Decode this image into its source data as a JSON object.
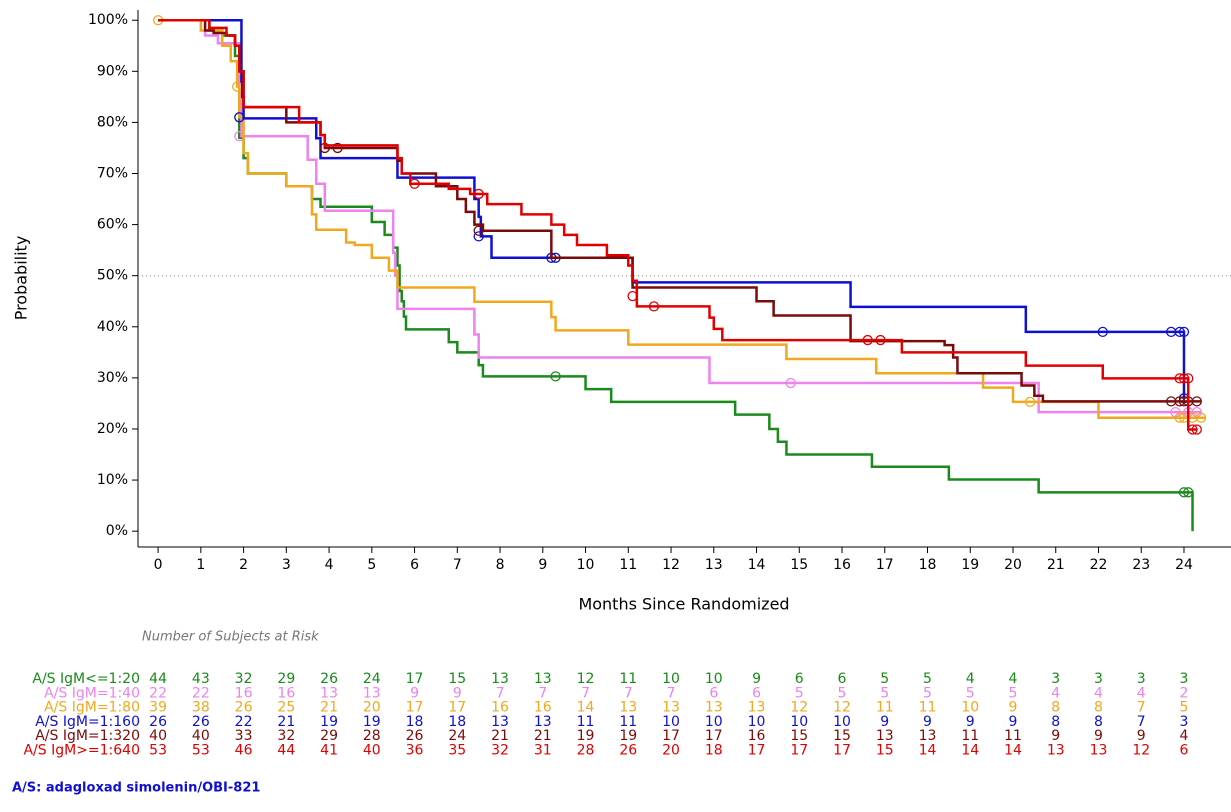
{
  "chart_data": {
    "type": "km",
    "xlabel": "Months Since Randomized",
    "ylabel": "Probability",
    "xlim": [
      -0.47,
      25.1
    ],
    "ylim": [
      -3.1,
      102
    ],
    "xticks": [
      0,
      1,
      2,
      3,
      4,
      5,
      6,
      7,
      8,
      9,
      10,
      11,
      12,
      13,
      14,
      15,
      16,
      17,
      18,
      19,
      20,
      21,
      22,
      23,
      24
    ],
    "yticks": [
      {
        "value": 0,
        "label": "0%"
      },
      {
        "value": 10,
        "label": "10%"
      },
      {
        "value": 20,
        "label": "20%"
      },
      {
        "value": 30,
        "label": "30%"
      },
      {
        "value": 40,
        "label": "40%"
      },
      {
        "value": 50,
        "label": "50%"
      },
      {
        "value": 60,
        "label": "60%"
      },
      {
        "value": 70,
        "label": "70%"
      },
      {
        "value": 80,
        "label": "80%"
      },
      {
        "value": 90,
        "label": "90%"
      },
      {
        "value": 100,
        "label": "100%"
      }
    ],
    "reference_line": 50,
    "risk_title": "Number of Subjects at Risk",
    "footnote": "A/S: adagloxad simolenin/OBI-821",
    "series": [
      {
        "name": "A/S IgM<=1:20",
        "color": "#1a8a1a",
        "x": [
          0,
          1.2,
          1.5,
          1.8,
          1.9,
          2.0,
          2.1,
          3.0,
          3.6,
          3.8,
          5.0,
          5.3,
          5.5,
          5.6,
          5.65,
          5.7,
          5.75,
          5.8,
          6.8,
          7.0,
          7.5,
          7.6,
          10.0,
          10.6,
          13.5,
          14.3,
          14.5,
          14.7,
          16.7,
          18.5,
          20.6,
          24.2,
          24.2
        ],
        "values": [
          100,
          98,
          97,
          93,
          77,
          73,
          70,
          67.5,
          65,
          63.5,
          60.5,
          58,
          55.5,
          52,
          47,
          45,
          42,
          39.5,
          37,
          35,
          32.5,
          30.3,
          27.8,
          25.3,
          22.8,
          20,
          17.5,
          15,
          12.6,
          10.1,
          7.6,
          7.6,
          0
        ],
        "censor_x": [
          9.3,
          24.0,
          24.1
        ],
        "censor_values": [
          30.3,
          7.6,
          7.6
        ],
        "at_risk": [
          44,
          43,
          32,
          29,
          26,
          24,
          17,
          15,
          13,
          13,
          12,
          11,
          10,
          10,
          9,
          6,
          6,
          5,
          5,
          4,
          4,
          3,
          3,
          3,
          3
        ]
      },
      {
        "name": "A/S IgM=1:40",
        "color": "#ee82ee",
        "x": [
          0,
          1.1,
          1.4,
          1.9,
          1.95,
          3.5,
          3.7,
          3.9,
          5.5,
          5.55,
          5.6,
          7.4,
          7.5,
          12.9,
          20.6,
          24.4
        ],
        "values": [
          100,
          97,
          95.5,
          86,
          77.3,
          72.7,
          68,
          62.7,
          54.5,
          50,
          43.5,
          38.5,
          34,
          29,
          23.3,
          23.3
        ],
        "censor_x": [
          1.9,
          14.8,
          23.8,
          24.1,
          24.3
        ],
        "censor_values": [
          77.3,
          29,
          23.3,
          23.3,
          23.3
        ],
        "at_risk": [
          22,
          22,
          16,
          16,
          13,
          13,
          9,
          9,
          7,
          7,
          7,
          7,
          7,
          6,
          6,
          5,
          5,
          5,
          5,
          5,
          5,
          4,
          4,
          4,
          2
        ]
      },
      {
        "name": "A/S IgM=1:80",
        "color": "#f2a81d",
        "x": [
          0,
          1.0,
          1.5,
          1.7,
          1.85,
          1.9,
          2.0,
          2.1,
          3.0,
          3.6,
          3.7,
          4.4,
          4.6,
          5.0,
          5.4,
          5.6,
          7.4,
          9.2,
          9.3,
          11.0,
          14.7,
          16.8,
          19.3,
          20.0,
          22.0,
          24.5
        ],
        "values": [
          100,
          98,
          95,
          92,
          87,
          81,
          74,
          70,
          67.5,
          62,
          59,
          56.5,
          56,
          53.5,
          51,
          47.7,
          44.9,
          41.9,
          39.3,
          36.5,
          33.7,
          30.9,
          28.1,
          25.3,
          22.2,
          22.2
        ],
        "censor_x": [
          0,
          1.85,
          1.9,
          20.4,
          23.9,
          24.0,
          24.2,
          24.4
        ],
        "censor_values": [
          100,
          87,
          81,
          25.3,
          22.2,
          22.2,
          22.2,
          22.2
        ],
        "at_risk": [
          39,
          38,
          26,
          25,
          21,
          20,
          17,
          17,
          16,
          16,
          14,
          13,
          13,
          13,
          13,
          12,
          12,
          11,
          11,
          10,
          9,
          8,
          8,
          7,
          5
        ]
      },
      {
        "name": "A/S IgM=1:160",
        "color": "#1010d0",
        "x": [
          0,
          1.95,
          1.97,
          2.0,
          3.7,
          3.8,
          5.6,
          7.4,
          7.5,
          7.55,
          7.8,
          11.1,
          16.2,
          20.3,
          24.0,
          24.0
        ],
        "values": [
          100,
          88,
          85,
          80.8,
          76.9,
          73,
          69.2,
          65,
          61.5,
          57.7,
          53.5,
          48.7,
          43.9,
          39,
          39,
          26
        ],
        "censor_x": [
          1.9,
          7.5,
          9.2,
          9.3,
          22.1,
          23.7,
          23.9,
          24.0,
          24.0
        ],
        "censor_values": [
          81,
          57.7,
          53.5,
          53.5,
          39,
          39,
          39,
          39,
          26
        ],
        "at_risk": [
          26,
          26,
          22,
          21,
          19,
          19,
          18,
          18,
          13,
          13,
          11,
          11,
          10,
          10,
          10,
          10,
          10,
          9,
          9,
          9,
          9,
          8,
          8,
          7,
          3
        ]
      },
      {
        "name": "A/S IgM=1:320",
        "color": "#7b0a0a",
        "x": [
          0,
          1.1,
          1.3,
          1.6,
          1.8,
          1.9,
          2.0,
          3.0,
          3.8,
          3.9,
          5.6,
          5.7,
          6.5,
          7.0,
          7.2,
          7.4,
          7.6,
          9.2,
          11.1,
          14.0,
          14.4,
          16.2,
          18.4,
          18.6,
          18.7,
          20.2,
          20.5,
          20.7,
          24.4
        ],
        "values": [
          100,
          98,
          97.5,
          97,
          95,
          90,
          83,
          80,
          77.5,
          75,
          72.5,
          70,
          67.5,
          65,
          62.5,
          60,
          58.8,
          53.5,
          47.7,
          45,
          42.2,
          37.2,
          36.4,
          34,
          30.9,
          28.5,
          26.5,
          25.4,
          25.4
        ],
        "censor_x": [
          3.9,
          4.2,
          7.5,
          23.7,
          23.9,
          24.0,
          24.1,
          24.3
        ],
        "censor_values": [
          75,
          75,
          58.8,
          25.4,
          25.4,
          25.4,
          25.4,
          25.4
        ],
        "at_risk": [
          40,
          40,
          33,
          32,
          29,
          28,
          26,
          24,
          21,
          21,
          19,
          19,
          17,
          17,
          16,
          15,
          15,
          13,
          13,
          11,
          11,
          9,
          9,
          9,
          4
        ]
      },
      {
        "name": "A/S IgM>=1:640",
        "color": "#e00000",
        "x": [
          0,
          1.2,
          1.6,
          1.8,
          1.9,
          2.0,
          3.3,
          3.8,
          3.9,
          5.6,
          5.7,
          5.9,
          6.8,
          7.3,
          7.7,
          8.5,
          9.2,
          9.5,
          9.8,
          10.5,
          11.0,
          11.1,
          11.2,
          12.9,
          13.0,
          13.2,
          17.4,
          20.3,
          22.1,
          24.1,
          24.3
        ],
        "values": [
          100,
          98.5,
          97,
          95,
          90,
          83,
          80,
          77.5,
          75.5,
          73,
          70,
          68,
          67,
          66,
          64,
          62,
          60,
          58,
          56,
          54,
          52,
          49,
          44,
          41.8,
          39.6,
          37.4,
          35,
          32.4,
          29.9,
          19.9,
          19.9
        ],
        "censor_x": [
          6.0,
          7.5,
          11.1,
          11.6,
          16.6,
          16.9,
          23.9,
          24.0,
          24.1,
          24.2,
          24.3
        ],
        "censor_values": [
          68,
          66,
          46,
          44,
          37.4,
          37.4,
          29.9,
          29.9,
          29.9,
          19.9,
          19.9
        ],
        "at_risk": [
          53,
          53,
          46,
          44,
          41,
          40,
          36,
          35,
          32,
          31,
          28,
          26,
          20,
          18,
          17,
          17,
          17,
          15,
          14,
          14,
          14,
          13,
          13,
          12,
          6
        ]
      }
    ]
  }
}
